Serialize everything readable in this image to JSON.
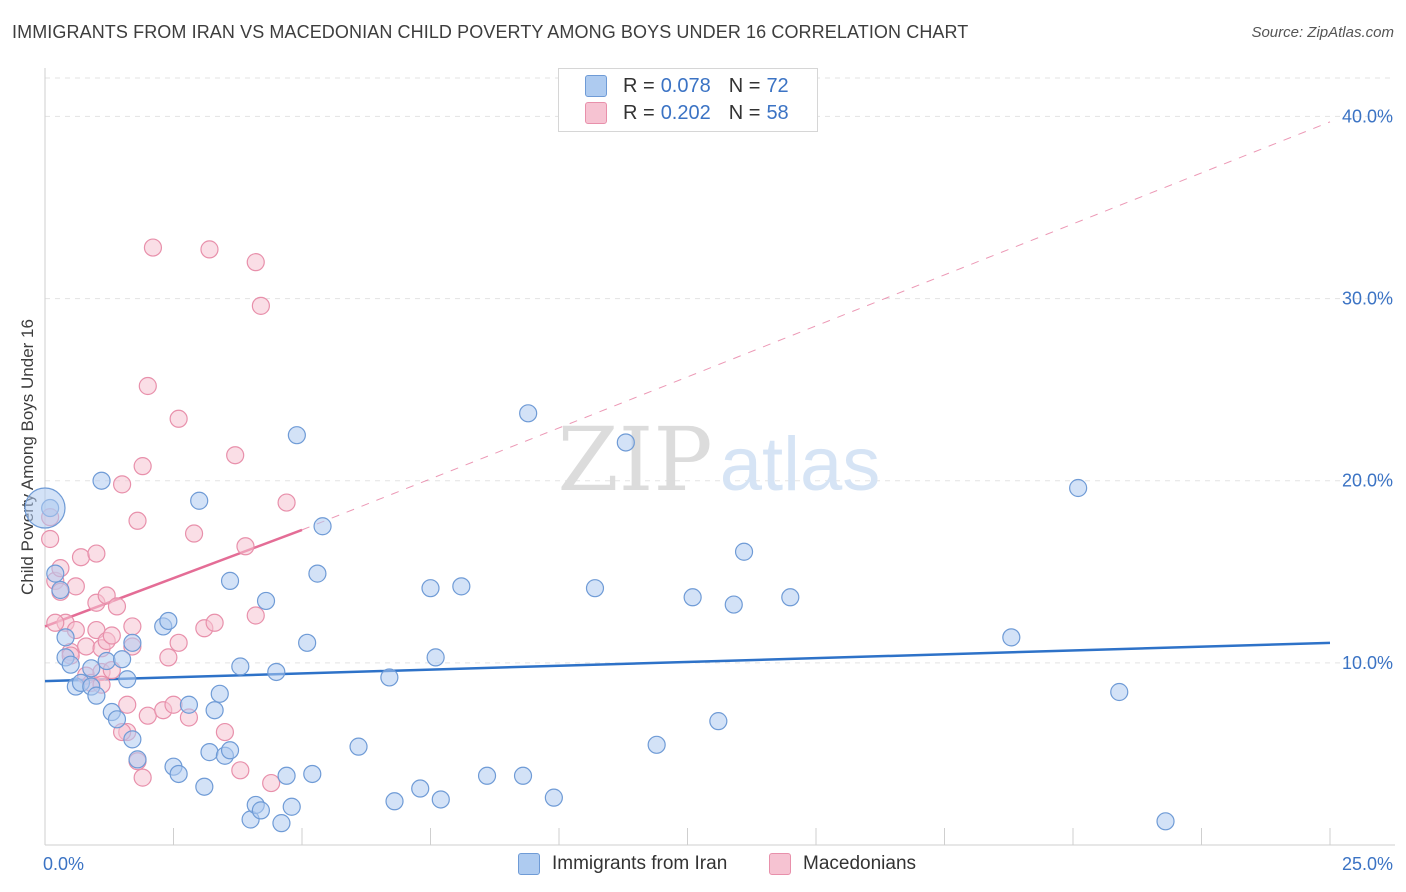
{
  "title": "IMMIGRANTS FROM IRAN VS MACEDONIAN CHILD POVERTY AMONG BOYS UNDER 16 CORRELATION CHART",
  "source": "Source: ZipAtlas.com",
  "watermark": {
    "zip": "ZIP",
    "atlas": "atlas"
  },
  "colors": {
    "blue_fill": "#aecbf0",
    "blue_stroke": "#6f9bd6",
    "blue_line": "#2e72c8",
    "pink_fill": "#f6c3d2",
    "pink_stroke": "#e890ab",
    "pink_line": "#e46d96",
    "tick_label": "#3b73c4",
    "grid": "#e3e3e3"
  },
  "legend": {
    "series1": {
      "r_label": "R =",
      "r_value": "0.078",
      "n_label": "N =",
      "n_value": "72"
    },
    "series2": {
      "r_label": "R =",
      "r_value": "0.202",
      "n_label": "N =",
      "n_value": "58"
    }
  },
  "bottom_legend": {
    "series1": "Immigrants from Iran",
    "series2": "Macedonians"
  },
  "chart_data": {
    "type": "scatter",
    "title": "IMMIGRANTS FROM IRAN VS MACEDONIAN CHILD POVERTY AMONG BOYS UNDER 16 CORRELATION CHART",
    "xlabel": "",
    "ylabel": "Child Poverty Among Boys Under 16",
    "xlim": [
      0,
      25
    ],
    "ylim": [
      0,
      42
    ],
    "x_tick_labels": [
      "0.0%",
      "25.0%"
    ],
    "y_ticks": [
      10,
      20,
      30,
      40
    ],
    "y_tick_labels": [
      "10.0%",
      "20.0%",
      "30.0%",
      "40.0%"
    ],
    "grid": true,
    "series": [
      {
        "name": "Immigrants from Iran",
        "color": "#aecbf0",
        "trend": {
          "x": [
            0,
            25
          ],
          "y": [
            9.0,
            11.1
          ],
          "style": "solid"
        },
        "points": [
          [
            0.1,
            18.5
          ],
          [
            0.2,
            14.9
          ],
          [
            0.3,
            14.0
          ],
          [
            0.4,
            11.4
          ],
          [
            0.4,
            10.3
          ],
          [
            0.5,
            9.9
          ],
          [
            0.6,
            8.7
          ],
          [
            0.7,
            8.9
          ],
          [
            0.9,
            8.7
          ],
          [
            0.9,
            9.7
          ],
          [
            1.0,
            8.2
          ],
          [
            1.1,
            20.0
          ],
          [
            1.2,
            10.1
          ],
          [
            1.3,
            7.3
          ],
          [
            1.4,
            6.9
          ],
          [
            1.5,
            10.2
          ],
          [
            1.6,
            9.1
          ],
          [
            1.7,
            11.1
          ],
          [
            1.7,
            5.8
          ],
          [
            1.8,
            4.7
          ],
          [
            2.3,
            12.0
          ],
          [
            2.4,
            12.3
          ],
          [
            2.5,
            4.3
          ],
          [
            2.6,
            3.9
          ],
          [
            2.8,
            7.7
          ],
          [
            3.0,
            18.9
          ],
          [
            3.1,
            3.2
          ],
          [
            3.2,
            5.1
          ],
          [
            3.3,
            7.4
          ],
          [
            3.4,
            8.3
          ],
          [
            3.5,
            4.9
          ],
          [
            3.6,
            5.2
          ],
          [
            3.6,
            14.5
          ],
          [
            3.8,
            9.8
          ],
          [
            4.0,
            1.4
          ],
          [
            4.1,
            2.2
          ],
          [
            4.2,
            1.9
          ],
          [
            4.3,
            13.4
          ],
          [
            4.5,
            9.5
          ],
          [
            4.6,
            1.2
          ],
          [
            4.7,
            3.8
          ],
          [
            4.8,
            2.1
          ],
          [
            4.9,
            22.5
          ],
          [
            5.1,
            11.1
          ],
          [
            5.2,
            3.9
          ],
          [
            5.3,
            14.9
          ],
          [
            5.4,
            17.5
          ],
          [
            6.1,
            5.4
          ],
          [
            6.7,
            9.2
          ],
          [
            6.8,
            2.4
          ],
          [
            7.3,
            3.1
          ],
          [
            7.5,
            14.1
          ],
          [
            7.6,
            10.3
          ],
          [
            7.7,
            2.5
          ],
          [
            8.1,
            14.2
          ],
          [
            8.6,
            3.8
          ],
          [
            9.3,
            3.8
          ],
          [
            9.4,
            23.7
          ],
          [
            9.9,
            2.6
          ],
          [
            10.7,
            14.1
          ],
          [
            11.3,
            22.1
          ],
          [
            11.9,
            5.5
          ],
          [
            12.6,
            13.6
          ],
          [
            13.1,
            6.8
          ],
          [
            13.4,
            13.2
          ],
          [
            13.6,
            16.1
          ],
          [
            14.5,
            13.6
          ],
          [
            18.8,
            11.4
          ],
          [
            20.1,
            19.6
          ],
          [
            20.9,
            8.4
          ],
          [
            21.8,
            1.3
          ],
          [
            0.0,
            18.5
          ]
        ]
      },
      {
        "name": "Macedonians",
        "color": "#f6c3d2",
        "trend": {
          "x": [
            0,
            5.0
          ],
          "y": [
            12.0,
            17.3
          ],
          "style": "solid",
          "extended_to": [
            25,
            39.7
          ]
        },
        "points": [
          [
            0.1,
            18.0
          ],
          [
            0.1,
            16.8
          ],
          [
            0.2,
            14.5
          ],
          [
            0.3,
            13.9
          ],
          [
            0.3,
            15.2
          ],
          [
            0.4,
            12.2
          ],
          [
            0.5,
            10.6
          ],
          [
            0.6,
            11.8
          ],
          [
            0.6,
            14.2
          ],
          [
            0.7,
            15.8
          ],
          [
            0.8,
            10.9
          ],
          [
            0.8,
            9.3
          ],
          [
            0.9,
            8.9
          ],
          [
            1.0,
            11.8
          ],
          [
            1.0,
            13.3
          ],
          [
            1.0,
            16.0
          ],
          [
            1.1,
            10.8
          ],
          [
            1.1,
            9.5
          ],
          [
            1.2,
            11.2
          ],
          [
            1.2,
            13.7
          ],
          [
            1.1,
            8.8
          ],
          [
            1.3,
            11.5
          ],
          [
            1.3,
            9.6
          ],
          [
            1.4,
            13.1
          ],
          [
            1.5,
            19.8
          ],
          [
            1.6,
            7.7
          ],
          [
            1.6,
            6.2
          ],
          [
            1.7,
            10.9
          ],
          [
            1.7,
            12.0
          ],
          [
            1.8,
            17.8
          ],
          [
            1.9,
            20.8
          ],
          [
            1.8,
            4.6
          ],
          [
            1.9,
            3.7
          ],
          [
            2.0,
            25.2
          ],
          [
            2.0,
            7.1
          ],
          [
            2.1,
            32.8
          ],
          [
            2.3,
            7.4
          ],
          [
            2.4,
            10.3
          ],
          [
            2.5,
            7.7
          ],
          [
            2.6,
            11.1
          ],
          [
            2.6,
            23.4
          ],
          [
            2.8,
            7.0
          ],
          [
            2.9,
            17.1
          ],
          [
            3.1,
            11.9
          ],
          [
            3.2,
            32.7
          ],
          [
            3.3,
            12.2
          ],
          [
            3.5,
            6.2
          ],
          [
            3.7,
            21.4
          ],
          [
            3.8,
            4.1
          ],
          [
            3.9,
            16.4
          ],
          [
            4.1,
            12.6
          ],
          [
            4.1,
            32.0
          ],
          [
            4.2,
            29.6
          ],
          [
            4.4,
            3.4
          ],
          [
            4.7,
            18.8
          ],
          [
            0.2,
            12.2
          ],
          [
            0.5,
            10.4
          ],
          [
            1.5,
            6.2
          ]
        ]
      }
    ]
  }
}
